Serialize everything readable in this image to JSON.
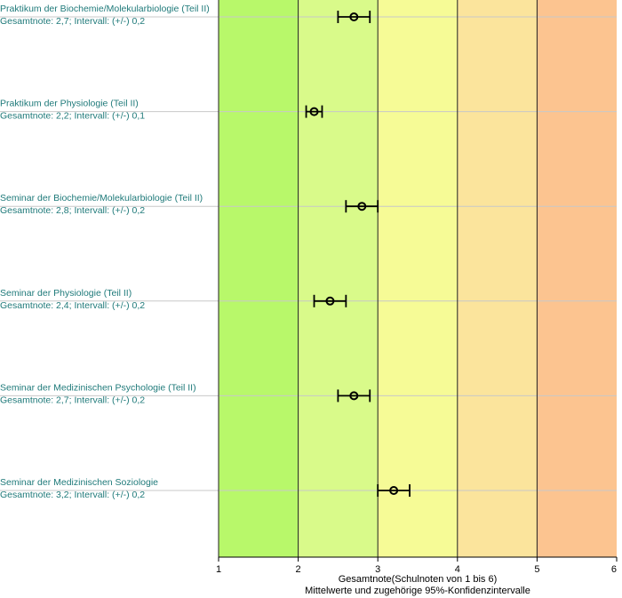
{
  "chart_data": {
    "type": "scatter",
    "xlabel": "Gesamtnote(Schulnoten von 1 bis 6)",
    "subtitle": "Mittelwerte und zugehörige 95%-Konfidenzintervalle",
    "xlim": [
      1,
      6
    ],
    "xticks": [
      "1",
      "2",
      "3",
      "4",
      "5",
      "6"
    ],
    "bands": [
      {
        "from": 1,
        "to": 2,
        "color": "#b8f86a"
      },
      {
        "from": 2,
        "to": 3,
        "color": "#d9fa8a"
      },
      {
        "from": 3,
        "to": 4,
        "color": "#f6fb96"
      },
      {
        "from": 4,
        "to": 5,
        "color": "#fbe49c"
      },
      {
        "from": 5,
        "to": 6,
        "color": "#fcc490"
      }
    ],
    "rows": [
      {
        "title": "Praktikum der Biochemie/Molekularbiologie (Teil II)",
        "note_text": "Gesamtnote: 2,7;  Intervall: (+/-) 0,2",
        "mean": 2.7,
        "ci": 0.2
      },
      {
        "title": "Praktikum der Physiologie (Teil II)",
        "note_text": "Gesamtnote: 2,2;  Intervall: (+/-) 0,1",
        "mean": 2.2,
        "ci": 0.1
      },
      {
        "title": "Seminar der Biochemie/Molekularbiologie (Teil II)",
        "note_text": "Gesamtnote: 2,8;  Intervall: (+/-) 0,2",
        "mean": 2.8,
        "ci": 0.2
      },
      {
        "title": "Seminar der Physiologie (Teil II)",
        "note_text": "Gesamtnote: 2,4;  Intervall: (+/-) 0,2",
        "mean": 2.4,
        "ci": 0.2
      },
      {
        "title": "Seminar der Medizinischen Psychologie (Teil II)",
        "note_text": "Gesamtnote: 2,7;  Intervall: (+/-) 0,2",
        "mean": 2.7,
        "ci": 0.2
      },
      {
        "title": "Seminar der Medizinischen Soziologie",
        "note_text": "Gesamtnote: 3,2;  Intervall: (+/-) 0,2",
        "mean": 3.2,
        "ci": 0.2
      }
    ]
  }
}
